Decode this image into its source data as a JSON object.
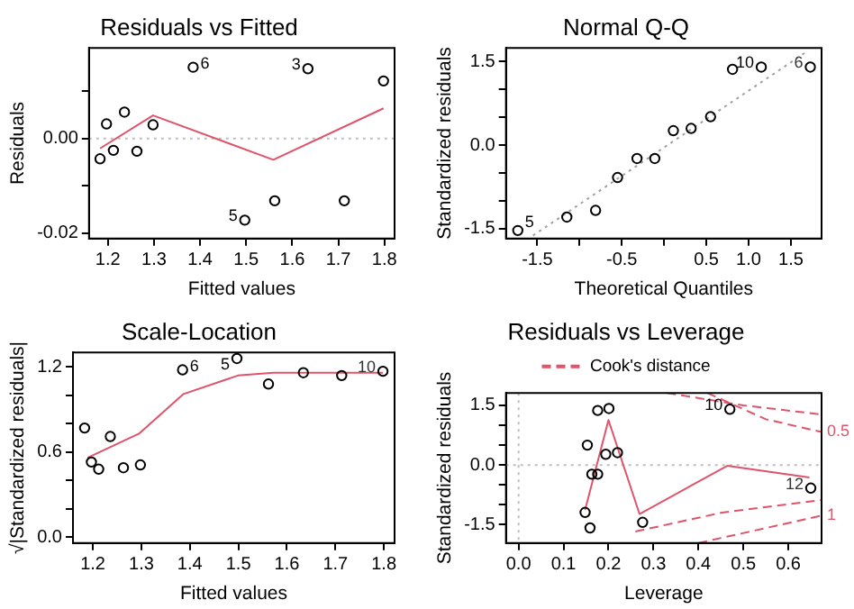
{
  "chart_data": [
    {
      "type": "scatter",
      "title": "Residuals vs Fitted",
      "xlabel": "Fitted values",
      "ylabel": "Residuals",
      "xlim": [
        1.159,
        1.822
      ],
      "xticks": [
        1.2,
        1.3,
        1.4,
        1.5,
        1.6,
        1.7,
        1.8
      ],
      "ylim": [
        -0.0212,
        0.0192
      ],
      "yticks": [
        {
          "value": -0.02,
          "label": "-0.02"
        },
        {
          "value": -0.01,
          "label": null
        },
        {
          "value": 0,
          "label": "0.00"
        },
        {
          "value": 0.01,
          "label": null
        }
      ],
      "ref_lines": [
        {
          "axis": "y",
          "value": 0,
          "color": "#bebebe",
          "line_style": "dotted"
        }
      ],
      "annotations": [
        {
          "text": "6",
          "x": 1.385,
          "y": 0.0151
        },
        {
          "text": "5",
          "x": 1.497,
          "y": -0.0173
        },
        {
          "text": "3",
          "x": 1.634,
          "y": 0.0148
        }
      ],
      "series": [
        {
          "marker": "circle",
          "color": "#000000",
          "x": [
            1.183,
            1.197,
            1.212,
            1.236,
            1.263,
            1.298,
            1.385,
            1.497,
            1.562,
            1.634,
            1.713,
            1.798
          ],
          "values": [
            -0.0043,
            0.0031,
            -0.0025,
            0.0056,
            -0.0027,
            0.0029,
            0.0151,
            -0.0173,
            -0.0132,
            0.0148,
            -0.0132,
            0.0122
          ]
        },
        {
          "type": "line",
          "color": "#df536b",
          "x": [
            1.183,
            1.298,
            1.559,
            1.798
          ],
          "values": [
            -0.0021,
            0.0049,
            -0.0045,
            0.0064
          ]
        }
      ]
    },
    {
      "type": "scatter",
      "title": "Normal Q-Q",
      "xlabel": "Theoretical Quantiles",
      "ylabel": "Standardized residuals",
      "xlim": [
        -1.87,
        1.863
      ],
      "xticks": [
        -1.5,
        {
          "value": -1,
          "label": null
        },
        -0.5,
        {
          "value": 0,
          "label": null
        },
        0.5,
        {
          "value": 1,
          "label": "1.0"
        },
        1.5
      ],
      "ylim": [
        -1.675,
        1.744
      ],
      "yticks": [
        -1.5,
        {
          "value": -1,
          "label": null
        },
        {
          "value": -0.5,
          "label": null
        },
        {
          "value": 0,
          "label": "0.0"
        },
        {
          "value": 0.5,
          "label": null
        },
        {
          "value": 1,
          "label": null
        },
        1.5
      ],
      "annotations": [
        {
          "text": "5",
          "x": -1.73,
          "y": -1.53
        },
        {
          "text": "10",
          "x": 1.15,
          "y": 1.4
        },
        {
          "text": "6",
          "x": 1.73,
          "y": 1.4
        }
      ],
      "series": [
        {
          "marker": "circle",
          "color": "#000000",
          "x": [
            -1.73,
            -1.15,
            -0.81,
            -0.55,
            -0.32,
            -0.11,
            0.11,
            0.32,
            0.55,
            0.81,
            1.15,
            1.73
          ],
          "values": [
            -1.53,
            -1.29,
            -1.17,
            -0.58,
            -0.24,
            -0.24,
            0.26,
            0.3,
            0.51,
            1.36,
            1.4,
            1.4
          ]
        },
        {
          "type": "line",
          "color": "#9e9e9e",
          "line_style": "dotted",
          "x": [
            -1.55,
            1.7
          ],
          "values": [
            -1.62,
            1.69
          ]
        }
      ]
    },
    {
      "type": "scatter",
      "title": "Scale-Location",
      "xlabel": "Fitted values",
      "ylabel": "√|Standardized residuals|",
      "xlim": [
        1.159,
        1.822
      ],
      "xticks": [
        1.2,
        1.3,
        1.4,
        1.5,
        1.6,
        1.7,
        1.8
      ],
      "ylim": [
        -0.041,
        1.303
      ],
      "yticks": [
        {
          "value": 0,
          "label": "0.0"
        },
        {
          "value": 0.2,
          "label": null
        },
        {
          "value": 0.4,
          "label": null
        },
        0.6,
        {
          "value": 0.8,
          "label": null
        },
        {
          "value": 1,
          "label": null
        },
        1.2
      ],
      "annotations": [
        {
          "text": "6",
          "x": 1.385,
          "y": 1.18
        },
        {
          "text": "5",
          "x": 1.497,
          "y": 1.26
        },
        {
          "text": "10",
          "x": 1.798,
          "y": 1.17
        }
      ],
      "series": [
        {
          "marker": "circle",
          "color": "#000000",
          "x": [
            1.183,
            1.197,
            1.212,
            1.236,
            1.263,
            1.298,
            1.385,
            1.497,
            1.562,
            1.634,
            1.713,
            1.798
          ],
          "values": [
            0.77,
            0.53,
            0.48,
            0.71,
            0.49,
            0.51,
            1.18,
            1.26,
            1.08,
            1.16,
            1.14,
            1.17
          ]
        },
        {
          "type": "line",
          "color": "#df536b",
          "x": [
            1.189,
            1.295,
            1.387,
            1.499,
            1.572,
            1.798
          ],
          "values": [
            0.56,
            0.73,
            1.01,
            1.14,
            1.16,
            1.16
          ]
        }
      ]
    },
    {
      "type": "scatter",
      "title": "Residuals vs Leverage",
      "xlabel": "Leverage",
      "ylabel": "Standardized residuals",
      "xlim": [
        -0.028,
        0.674
      ],
      "xticks": [
        {
          "value": 0,
          "label": "0.0"
        },
        0.1,
        0.2,
        0.3,
        0.4,
        0.5,
        0.6
      ],
      "ylim": [
        -1.96,
        1.81
      ],
      "yticks": [
        -1.5,
        {
          "value": -1,
          "label": null
        },
        {
          "value": -0.5,
          "label": null
        },
        {
          "value": 0,
          "label": "0.0"
        },
        {
          "value": 0.5,
          "label": null
        },
        {
          "value": 1,
          "label": null
        },
        1.5
      ],
      "legend": "top",
      "ref_lines": [
        {
          "axis": "y",
          "value": 0,
          "color": "#bebebe",
          "line_style": "dotted"
        },
        {
          "axis": "x",
          "value": 0,
          "color": "#bebebe",
          "line_style": "dotted"
        }
      ],
      "annotations": [
        {
          "text": "10",
          "x": 0.47,
          "y": 1.4
        },
        {
          "text": "12",
          "x": 0.65,
          "y": -0.58
        },
        {
          "text": "0.5",
          "x": 0.674,
          "y": 0.83
        },
        {
          "text": "1",
          "x": 0.674,
          "y": -1.27
        }
      ],
      "series": [
        {
          "marker": "circle",
          "color": "#000000",
          "x": [
            0.148,
            0.159,
            0.276,
            0.163,
            0.176,
            0.194,
            0.22,
            0.153,
            0.176,
            0.201,
            0.47,
            0.65
          ],
          "values": [
            -1.19,
            -1.58,
            -1.44,
            -0.23,
            -0.23,
            0.27,
            0.31,
            0.5,
            1.37,
            1.42,
            1.4,
            -0.58
          ]
        },
        {
          "type": "line",
          "color": "#df536b",
          "x": [
            0.148,
            0.2,
            0.269,
            0.464,
            0.647
          ],
          "values": [
            -1.13,
            1.13,
            -1.23,
            -0.02,
            -0.31
          ]
        },
        {
          "type": "line",
          "name": "Cook's distance",
          "color": "#df536b",
          "line_style": "dashed",
          "x": [
            0.33,
            0.5,
            0.674
          ],
          "values": [
            1.81,
            1.5,
            1.27
          ]
        },
        {
          "type": "line",
          "color": "#df536b",
          "line_style": "dashed",
          "x": [
            0.42,
            0.55,
            0.674
          ],
          "values": [
            1.81,
            1.15,
            0.83
          ]
        },
        {
          "type": "line",
          "color": "#df536b",
          "line_style": "dashed",
          "x": [
            0.26,
            0.45,
            0.674
          ],
          "values": [
            -1.67,
            -1.2,
            -0.88
          ]
        },
        {
          "type": "line",
          "color": "#df536b",
          "line_style": "dashed",
          "x": [
            0.4,
            0.674
          ],
          "values": [
            -1.96,
            -1.27
          ]
        }
      ]
    }
  ]
}
